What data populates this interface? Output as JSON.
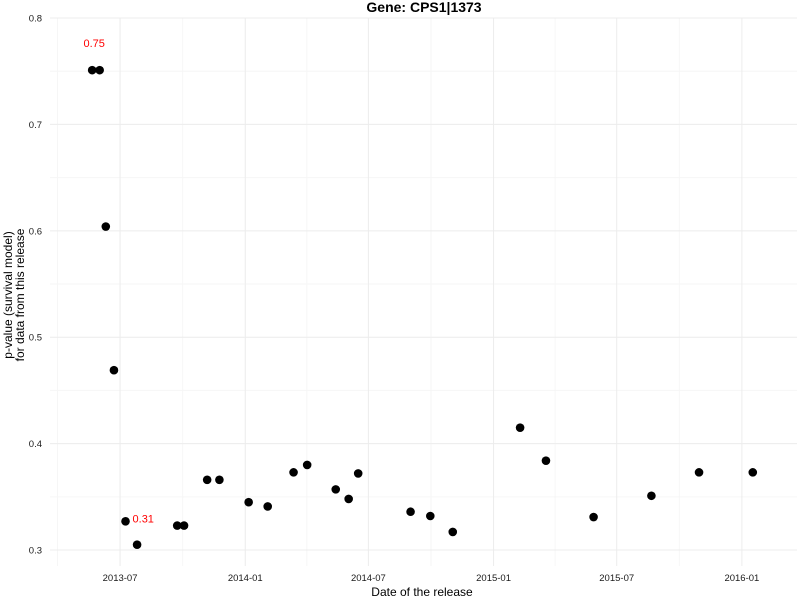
{
  "chart_data": {
    "type": "scatter",
    "title": "Gene: CPS1|1373",
    "xlabel": "Date of the release",
    "ylabel": [
      "p-value (survival model)",
      "for data from this release"
    ],
    "ylim": [
      0.285,
      0.8
    ],
    "xlim": [
      "2013-03-20",
      "2016-03-22"
    ],
    "yticks": [
      0.3,
      0.4,
      0.5,
      0.6,
      0.7,
      0.8
    ],
    "ytick_labels": [
      "0.3",
      "0.4",
      "0.5",
      "0.6",
      "0.7",
      "0.8"
    ],
    "xticks": [
      "2013-07-01",
      "2014-01-01",
      "2014-07-01",
      "2015-01-01",
      "2015-07-01",
      "2016-01-01"
    ],
    "xtick_labels": [
      "2013-07",
      "2014-01",
      "2014-07",
      "2015-01",
      "2015-07",
      "2016-01"
    ],
    "grid": true,
    "point_color": "#000000",
    "annotation_color": "#ff0000",
    "points": [
      {
        "x": "2013-05-21",
        "y": 0.751
      },
      {
        "x": "2013-06-01",
        "y": 0.751
      },
      {
        "x": "2013-06-10",
        "y": 0.604
      },
      {
        "x": "2013-06-22",
        "y": 0.469
      },
      {
        "x": "2013-07-09",
        "y": 0.327
      },
      {
        "x": "2013-07-26",
        "y": 0.305
      },
      {
        "x": "2013-09-23",
        "y": 0.323
      },
      {
        "x": "2013-10-03",
        "y": 0.323
      },
      {
        "x": "2013-11-06",
        "y": 0.366
      },
      {
        "x": "2013-11-24",
        "y": 0.366
      },
      {
        "x": "2014-01-06",
        "y": 0.345
      },
      {
        "x": "2014-02-03",
        "y": 0.341
      },
      {
        "x": "2014-03-13",
        "y": 0.373
      },
      {
        "x": "2014-04-02",
        "y": 0.38
      },
      {
        "x": "2014-05-14",
        "y": 0.357
      },
      {
        "x": "2014-06-02",
        "y": 0.348
      },
      {
        "x": "2014-06-16",
        "y": 0.372
      },
      {
        "x": "2014-09-01",
        "y": 0.336
      },
      {
        "x": "2014-09-30",
        "y": 0.332
      },
      {
        "x": "2014-11-02",
        "y": 0.317
      },
      {
        "x": "2015-02-09",
        "y": 0.415
      },
      {
        "x": "2015-03-19",
        "y": 0.384
      },
      {
        "x": "2015-05-28",
        "y": 0.331
      },
      {
        "x": "2015-08-21",
        "y": 0.351
      },
      {
        "x": "2015-10-30",
        "y": 0.373
      },
      {
        "x": "2016-01-17",
        "y": 0.373
      }
    ],
    "annotations": [
      {
        "text": "0.75",
        "x": "2013-05-21",
        "y": 0.751,
        "position": "above-left"
      },
      {
        "text": "0.31",
        "x": "2013-07-09",
        "y": 0.327,
        "position": "right"
      }
    ]
  }
}
